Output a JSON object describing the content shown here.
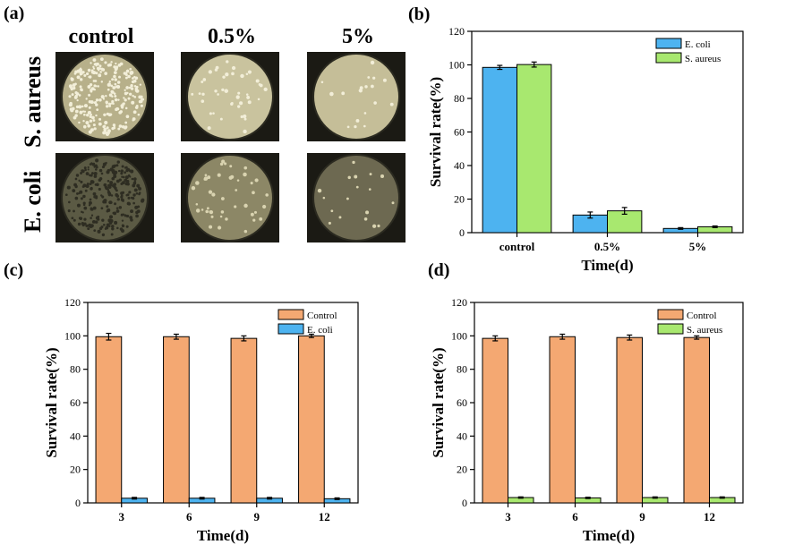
{
  "panel_a": {
    "label": "(a)",
    "columns": [
      "control",
      "0.5%",
      "5%"
    ],
    "rows": [
      "S. aureus",
      "E. coli"
    ],
    "dishes": [
      {
        "row": 0,
        "col": 0,
        "colonies": "dense",
        "plate_color": "#b7b08a"
      },
      {
        "row": 0,
        "col": 1,
        "colonies": "sparse",
        "plate_color": "#c9c39e"
      },
      {
        "row": 0,
        "col": 2,
        "colonies": "few",
        "plate_color": "#c5be98"
      },
      {
        "row": 1,
        "col": 0,
        "colonies": "dense",
        "plate_color": "#5b5a44"
      },
      {
        "row": 1,
        "col": 1,
        "colonies": "sparse",
        "plate_color": "#8c8766"
      },
      {
        "row": 1,
        "col": 2,
        "colonies": "few",
        "plate_color": "#6d6951"
      }
    ]
  },
  "chart_data": [
    {
      "id": "b",
      "label": "(b)",
      "type": "bar",
      "categories": [
        "control",
        "0.5%",
        "5%"
      ],
      "series": [
        {
          "name": "E. coli",
          "color": "#4db3f0",
          "values": [
            98.5,
            10.5,
            2.5
          ],
          "errors": [
            1.2,
            1.8,
            0.5
          ]
        },
        {
          "name": "S. aureus",
          "color": "#a8e86f",
          "values": [
            100.2,
            13.0,
            3.5
          ],
          "errors": [
            1.5,
            2.0,
            0.5
          ]
        }
      ],
      "xlabel": "Time(d)",
      "ylabel": "Survival rate(%)",
      "ylim": [
        0,
        120
      ],
      "yticks": [
        0,
        20,
        40,
        60,
        80,
        100,
        120
      ],
      "legend": "top-right"
    },
    {
      "id": "c",
      "label": "(c)",
      "type": "bar",
      "categories": [
        "3",
        "6",
        "9",
        "12"
      ],
      "series": [
        {
          "name": "Control",
          "color": "#f4a872",
          "values": [
            99.5,
            99.5,
            98.5,
            100.0
          ],
          "errors": [
            2.0,
            1.5,
            1.5,
            1.0
          ]
        },
        {
          "name": "E. coli",
          "color": "#4db3f0",
          "values": [
            2.8,
            2.8,
            2.8,
            2.5
          ],
          "errors": [
            0.5,
            0.5,
            0.5,
            0.5
          ]
        }
      ],
      "xlabel": "Time(d)",
      "ylabel": "Survival rate(%)",
      "ylim": [
        0,
        120
      ],
      "yticks": [
        0,
        20,
        40,
        60,
        80,
        100,
        120
      ],
      "legend": "top-right"
    },
    {
      "id": "d",
      "label": "(d)",
      "type": "bar",
      "categories": [
        "3",
        "6",
        "9",
        "12"
      ],
      "series": [
        {
          "name": "Control",
          "color": "#f4a872",
          "values": [
            98.5,
            99.5,
            99.0,
            99.0
          ],
          "errors": [
            1.5,
            1.5,
            1.5,
            1.0
          ]
        },
        {
          "name": "S. aureus",
          "color": "#a8e86f",
          "values": [
            3.2,
            3.0,
            3.2,
            3.2
          ],
          "errors": [
            0.4,
            0.4,
            0.4,
            0.4
          ]
        }
      ],
      "xlabel": "Time(d)",
      "ylabel": "Survival rate(%)",
      "ylim": [
        0,
        120
      ],
      "yticks": [
        0,
        20,
        40,
        60,
        80,
        100,
        120
      ],
      "legend": "top-right"
    }
  ]
}
